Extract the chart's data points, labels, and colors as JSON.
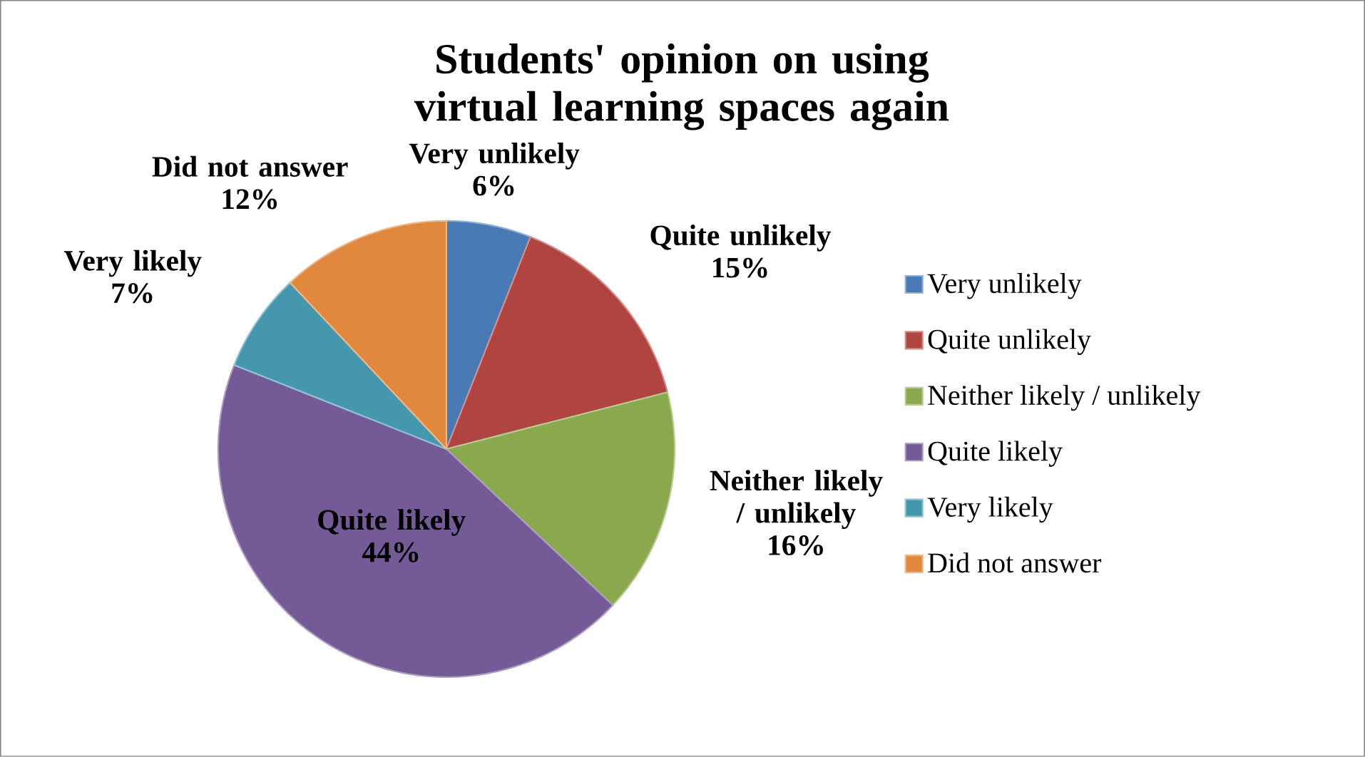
{
  "chart_data": {
    "type": "pie",
    "title": "Students' opinion on using virtual learning spaces again",
    "categories": [
      "Very unlikely",
      "Quite unlikely",
      "Neither likely / unlikely",
      "Quite likely",
      "Very likely",
      "Did not answer"
    ],
    "values": [
      6,
      15,
      16,
      44,
      7,
      12
    ],
    "colors": [
      "#4a7ab5",
      "#b04440",
      "#8aa84e",
      "#745a96",
      "#4597ae",
      "#e0883e"
    ],
    "value_labels": [
      "6%",
      "15%",
      "16%",
      "44%",
      "7%",
      "12%"
    ],
    "legend": "right"
  }
}
